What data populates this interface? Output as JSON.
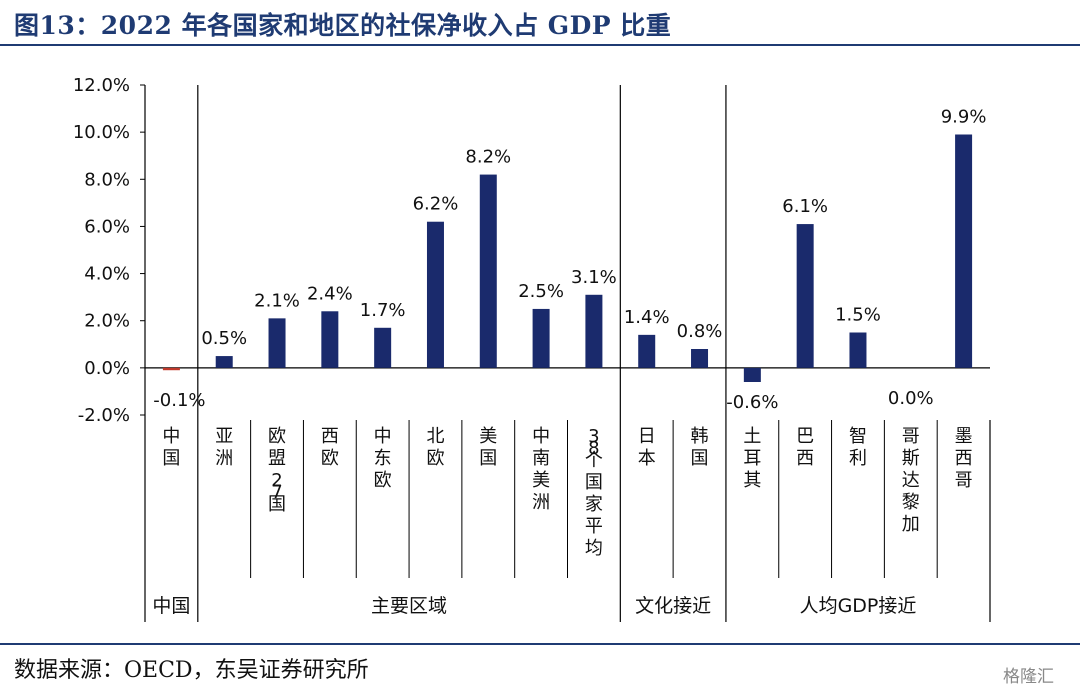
{
  "title": "图13：2022 年各国家和地区的社保净收入占 GDP 比重",
  "source": "数据来源：OECD，东吴证券研究所",
  "watermark": "格隆汇",
  "colors": {
    "bar": "#1a2a6c",
    "negative_bar": "#c0392b",
    "title": "#1f3b73"
  },
  "chart_data": {
    "type": "bar",
    "title": "",
    "xlabel": "",
    "ylabel": "",
    "ylim": [
      -2.0,
      12.0
    ],
    "ytick_values": [
      -2,
      0,
      2,
      4,
      6,
      8,
      10,
      12
    ],
    "ytick_labels": [
      "-2.0%",
      "0.0%",
      "2.0%",
      "4.0%",
      "6.0%",
      "8.0%",
      "10.0%",
      "12.0%"
    ],
    "categories": [
      "中国",
      "亚洲",
      "欧盟27国",
      "西欧",
      "中东欧",
      "北欧",
      "美国",
      "中南美洲",
      "38个国家平均",
      "日本",
      "韩国",
      "土耳其",
      "巴西",
      "智利",
      "哥斯达黎加",
      "墨西哥"
    ],
    "values": [
      -0.1,
      0.5,
      2.1,
      2.4,
      1.7,
      6.2,
      8.2,
      2.5,
      3.1,
      1.4,
      0.8,
      -0.6,
      6.1,
      1.5,
      0.0,
      9.9
    ],
    "data_labels": [
      "-0.1%",
      "0.5%",
      "2.1%",
      "2.4%",
      "1.7%",
      "6.2%",
      "8.2%",
      "2.5%",
      "3.1%",
      "1.4%",
      "0.8%",
      "-0.6%",
      "6.1%",
      "1.5%",
      "0.0%",
      "9.9%"
    ],
    "groups": [
      {
        "label": "中国",
        "count": 1
      },
      {
        "label": "主要区域",
        "count": 8
      },
      {
        "label": "文化接近",
        "count": 2
      },
      {
        "label": "人均GDP接近",
        "count": 5
      }
    ]
  }
}
